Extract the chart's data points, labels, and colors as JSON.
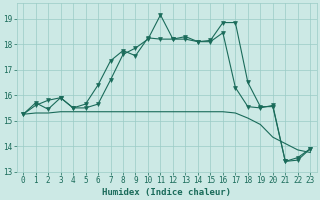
{
  "title": "",
  "xlabel": "Humidex (Indice chaleur)",
  "bg_color": "#cce9e5",
  "grid_color": "#9bccc6",
  "line_color": "#1a6b5a",
  "xlim": [
    -0.5,
    23.5
  ],
  "ylim": [
    13.0,
    19.6
  ],
  "yticks": [
    13,
    14,
    15,
    16,
    17,
    18,
    19
  ],
  "xticks": [
    0,
    1,
    2,
    3,
    4,
    5,
    6,
    7,
    8,
    9,
    10,
    11,
    12,
    13,
    14,
    15,
    16,
    17,
    18,
    19,
    20,
    21,
    22,
    23
  ],
  "line1_x": [
    0,
    1,
    2,
    3,
    4,
    5,
    6,
    7,
    8,
    9,
    10,
    11,
    12,
    13,
    14,
    15,
    16,
    17,
    18,
    19,
    20,
    21,
    22,
    23
  ],
  "line1_y": [
    15.25,
    15.7,
    15.45,
    15.9,
    15.5,
    15.5,
    15.65,
    16.6,
    17.6,
    17.85,
    18.2,
    19.15,
    18.2,
    18.2,
    18.1,
    18.15,
    18.85,
    18.85,
    16.5,
    15.55,
    15.55,
    13.4,
    13.45,
    13.9
  ],
  "line2_x": [
    0,
    1,
    2,
    3,
    4,
    5,
    6,
    7,
    8,
    9,
    10,
    11,
    12,
    13,
    14,
    15,
    16,
    17,
    18,
    19,
    20,
    21,
    22,
    23
  ],
  "line2_y": [
    15.25,
    15.6,
    15.8,
    15.9,
    15.5,
    15.65,
    16.4,
    17.35,
    17.75,
    17.55,
    18.25,
    18.2,
    18.2,
    18.3,
    18.1,
    18.1,
    18.45,
    16.3,
    15.55,
    15.5,
    15.6,
    13.4,
    13.55,
    13.9
  ],
  "line3_x": [
    0,
    1,
    2,
    3,
    4,
    5,
    6,
    7,
    8,
    9,
    10,
    11,
    12,
    13,
    14,
    15,
    16,
    17,
    18,
    19,
    20,
    21,
    22,
    23
  ],
  "line3_y": [
    15.25,
    15.3,
    15.3,
    15.35,
    15.35,
    15.35,
    15.35,
    15.35,
    15.35,
    15.35,
    15.35,
    15.35,
    15.35,
    15.35,
    15.35,
    15.35,
    15.35,
    15.3,
    15.1,
    14.85,
    14.35,
    14.1,
    13.85,
    13.75
  ]
}
